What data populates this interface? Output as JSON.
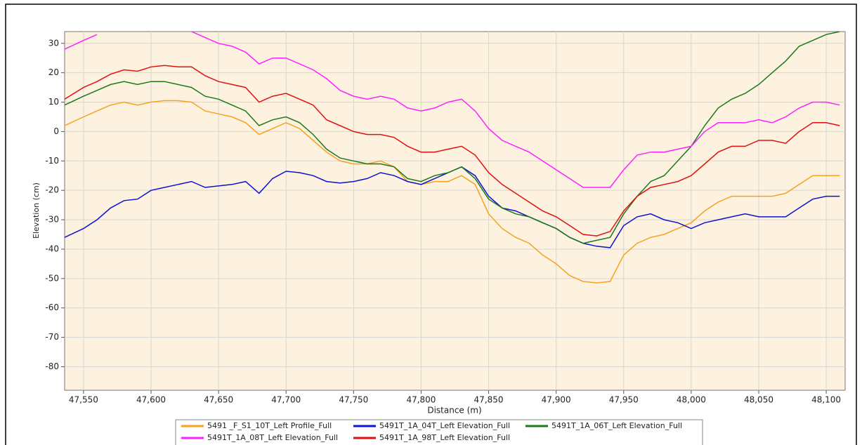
{
  "chart_data": {
    "type": "line",
    "x_label": "Distance (m)",
    "y_label": "Elevation (cm)",
    "x": [
      47536,
      47550,
      47560,
      47570,
      47580,
      47590,
      47600,
      47610,
      47620,
      47630,
      47640,
      47650,
      47660,
      47670,
      47680,
      47690,
      47700,
      47710,
      47720,
      47730,
      47740,
      47750,
      47760,
      47770,
      47780,
      47790,
      47800,
      47810,
      47820,
      47830,
      47840,
      47850,
      47860,
      47870,
      47880,
      47890,
      47900,
      47910,
      47920,
      47930,
      47940,
      47950,
      47960,
      47970,
      47980,
      47990,
      48000,
      48010,
      48020,
      48030,
      48040,
      48050,
      48060,
      48070,
      48080,
      48090,
      48100,
      48110
    ],
    "series": [
      {
        "name": "5491 _F_S1_10T_Left Profile_Full",
        "color": "#f5a21f",
        "values": [
          2,
          5,
          7,
          9,
          10,
          9,
          10,
          10.5,
          10.5,
          10,
          7,
          6,
          5,
          3,
          -1,
          1,
          3,
          1,
          -3,
          -7,
          -10,
          -11,
          -11,
          -10,
          -12,
          -17,
          -18,
          -17,
          -17,
          -15,
          -18,
          -28,
          -33,
          -36,
          -38,
          -42,
          -45,
          -49,
          -51,
          -51.5,
          -51,
          -42,
          -38,
          -36,
          -35,
          -33,
          -31,
          -27,
          -24,
          -22,
          -22,
          -22,
          -22,
          -21,
          -18,
          -15,
          -15,
          -15
        ]
      },
      {
        "name": "5491T_1A_04T_Left Elevation_Full",
        "color": "#1010d0",
        "values": [
          -36,
          -33,
          -30,
          -26,
          -23.5,
          -23,
          -20,
          -19,
          -18,
          -17,
          -19,
          -18.5,
          -18,
          -17,
          -21,
          -16,
          -13.5,
          -14,
          -15,
          -17,
          -17.5,
          -17,
          -16,
          -14,
          -15,
          -17,
          -18,
          -16,
          -14,
          -12,
          -15,
          -22,
          -26,
          -27,
          -29,
          -31,
          -33,
          -36,
          -38,
          -39,
          -39.5,
          -32,
          -29,
          -28,
          -30,
          -31,
          -33,
          -31,
          -30,
          -29,
          -28,
          -29,
          -29,
          -29,
          -26,
          -23,
          -22,
          -22
        ]
      },
      {
        "name": "5491T_1A_06T_Left Elevation_Full",
        "color": "#1a7a1a",
        "values": [
          9,
          12,
          14,
          16,
          17,
          16,
          17,
          17,
          16,
          15,
          12,
          11,
          9,
          7,
          2,
          4,
          5,
          3,
          -1,
          -6,
          -9,
          -10,
          -11,
          -11,
          -12,
          -16,
          -17,
          -15,
          -14,
          -12,
          -16,
          -23,
          -26,
          -28,
          -29,
          -31,
          -33,
          -36,
          -38,
          -37,
          -36,
          -28,
          -22,
          -17,
          -15,
          -10,
          -5,
          2,
          8,
          11,
          13,
          16,
          20,
          24,
          29,
          31,
          33,
          34
        ]
      },
      {
        "name": "5491T_1A_08T_Left Elevation_Full",
        "color": "#ff20ff",
        "values": [
          28,
          31,
          33,
          null,
          null,
          null,
          null,
          null,
          null,
          34,
          32,
          30,
          29,
          27,
          23,
          25,
          25,
          23,
          21,
          18,
          14,
          12,
          11,
          12,
          11,
          8,
          7,
          8,
          10,
          11,
          7,
          1,
          -3,
          -5,
          -7,
          -10,
          -13,
          -16,
          -19,
          -19,
          -19,
          -13,
          -8,
          -7,
          -7,
          -6,
          -5,
          0,
          3,
          3,
          3,
          4,
          3,
          5,
          8,
          10,
          10,
          9
        ]
      },
      {
        "name": "5491T_1A_98T_Left Elevation_Full",
        "color": "#e01010",
        "values": [
          11,
          15,
          17,
          19.5,
          21,
          20.5,
          22,
          22.5,
          22,
          22,
          19,
          17,
          16,
          15,
          10,
          12,
          13,
          11,
          9,
          4,
          2,
          0,
          -1,
          -1,
          -2,
          -5,
          -7,
          -7,
          -6,
          -5,
          -8,
          -14,
          -18,
          -21,
          -24,
          -27,
          -29,
          -32,
          -35,
          -35.5,
          -34,
          -27,
          -22,
          -19,
          -18,
          -17,
          -15,
          -11,
          -7,
          -5,
          -5,
          -3,
          -3,
          -4,
          0,
          3,
          3,
          2
        ]
      }
    ],
    "xlim": [
      47536,
      48114
    ],
    "xticks": [
      {
        "value": 47550,
        "label": "47,550"
      },
      {
        "value": 47600,
        "label": "47,600"
      },
      {
        "value": 47650,
        "label": "47,650"
      },
      {
        "value": 47700,
        "label": "47,700"
      },
      {
        "value": 47750,
        "label": "47,750"
      },
      {
        "value": 47800,
        "label": "47,800"
      },
      {
        "value": 47850,
        "label": "47,850"
      },
      {
        "value": 47900,
        "label": "47,900"
      },
      {
        "value": 47950,
        "label": "47,950"
      },
      {
        "value": 48000,
        "label": "48,000"
      },
      {
        "value": 48050,
        "label": "48,050"
      },
      {
        "value": 48100,
        "label": "48,100"
      }
    ],
    "ylim": [
      -88,
      34
    ],
    "yticks": [
      30,
      20,
      10,
      0,
      -10,
      -20,
      -30,
      -40,
      -50,
      -60,
      -70,
      -80
    ],
    "grid": true,
    "plot_background": "#fcf2df",
    "legend": "bottom"
  }
}
